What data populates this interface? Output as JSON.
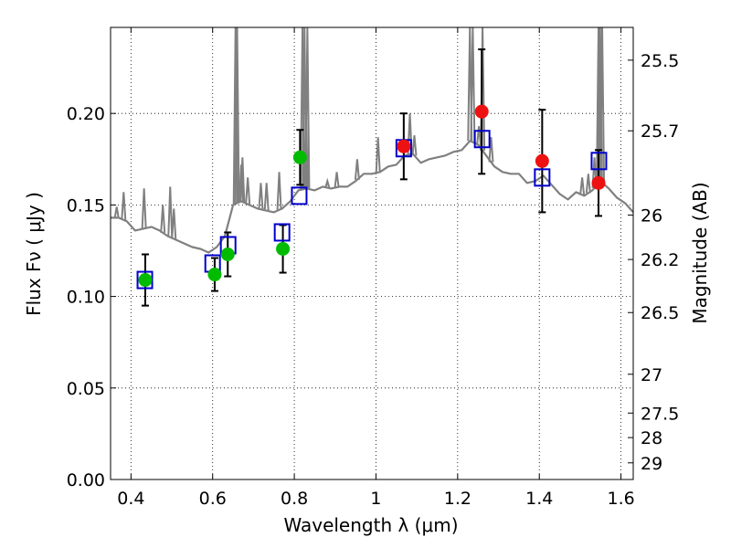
{
  "chart_data": {
    "type": "scatter",
    "xlabel": "Wavelength  λ (μm)",
    "ylabel": "Flux  Fν  ( μJy )",
    "y2label": "Magnitude (AB)",
    "xlim": [
      0.35,
      1.63
    ],
    "ylim": [
      0.0,
      0.247
    ],
    "grid": true,
    "x_ticks": [
      0.4,
      0.6,
      0.8,
      1.0,
      1.2,
      1.4,
      1.6
    ],
    "x_tick_labels": [
      "0.4",
      "0.6",
      "0.8",
      "1",
      "1.2",
      "1.4",
      "1.6"
    ],
    "y_ticks": [
      0.0,
      0.05,
      0.1,
      0.15,
      0.2
    ],
    "y_tick_labels": [
      "0.00",
      "0.05",
      "0.10",
      "0.15",
      "0.20"
    ],
    "y2_ticks": [
      {
        "label": "25.5",
        "flux": 0.2291
      },
      {
        "label": "25.7",
        "flux": 0.1905
      },
      {
        "label": "26",
        "flux": 0.1445
      },
      {
        "label": "26.2",
        "flux": 0.1202
      },
      {
        "label": "26.5",
        "flux": 0.0912
      },
      {
        "label": "27",
        "flux": 0.0575
      },
      {
        "label": "27.5",
        "flux": 0.0363
      },
      {
        "label": "28",
        "flux": 0.0229
      },
      {
        "label": "29",
        "flux": 0.0091
      }
    ],
    "series": [
      {
        "marker": "circle",
        "color": "#00bb00",
        "x": [
          0.435,
          0.605,
          0.637,
          0.772,
          0.814
        ],
        "y": [
          0.109,
          0.112,
          0.123,
          0.126,
          0.176
        ],
        "yerr": [
          0.014,
          0.009,
          0.012,
          0.013,
          0.015
        ]
      },
      {
        "marker": "circle",
        "color": "#ee1111",
        "x": [
          1.068,
          1.259,
          1.407,
          1.545
        ],
        "y": [
          0.182,
          0.201,
          0.174,
          0.162
        ],
        "yerr": [
          0.018,
          0.034,
          0.028,
          0.018
        ]
      },
      {
        "marker": "open-square",
        "color": "#0000cc",
        "x": [
          0.434,
          0.6,
          0.638,
          0.77,
          0.812,
          1.068,
          1.26,
          1.407,
          1.546
        ],
        "y": [
          0.109,
          0.118,
          0.128,
          0.135,
          0.155,
          0.181,
          0.186,
          0.165,
          0.174
        ]
      },
      {
        "marker": "line",
        "color": "#808080",
        "x": [
          0.35,
          0.37,
          0.39,
          0.41,
          0.43,
          0.45,
          0.47,
          0.49,
          0.51,
          0.53,
          0.55,
          0.57,
          0.59,
          0.61,
          0.63,
          0.65,
          0.67,
          0.69,
          0.71,
          0.73,
          0.75,
          0.77,
          0.79,
          0.81,
          0.83,
          0.85,
          0.87,
          0.89,
          0.91,
          0.93,
          0.95,
          0.97,
          0.99,
          1.01,
          1.03,
          1.05,
          1.07,
          1.09,
          1.11,
          1.13,
          1.15,
          1.17,
          1.19,
          1.21,
          1.23,
          1.25,
          1.27,
          1.29,
          1.31,
          1.33,
          1.35,
          1.37,
          1.39,
          1.41,
          1.43,
          1.45,
          1.47,
          1.49,
          1.51,
          1.53,
          1.55,
          1.57,
          1.59,
          1.61,
          1.63
        ],
        "y": [
          0.143,
          0.143,
          0.141,
          0.136,
          0.137,
          0.138,
          0.136,
          0.133,
          0.131,
          0.129,
          0.127,
          0.126,
          0.124,
          0.127,
          0.133,
          0.15,
          0.152,
          0.15,
          0.148,
          0.147,
          0.146,
          0.148,
          0.152,
          0.158,
          0.159,
          0.158,
          0.16,
          0.159,
          0.16,
          0.16,
          0.163,
          0.167,
          0.167,
          0.168,
          0.171,
          0.172,
          0.177,
          0.178,
          0.173,
          0.175,
          0.176,
          0.177,
          0.179,
          0.18,
          0.185,
          0.183,
          0.177,
          0.171,
          0.168,
          0.167,
          0.167,
          0.162,
          0.163,
          0.166,
          0.161,
          0.156,
          0.153,
          0.157,
          0.155,
          0.158,
          0.163,
          0.159,
          0.154,
          0.151,
          0.146
        ]
      },
      {
        "marker": "spike",
        "color": "#808080",
        "x": [
          0.365,
          0.382,
          0.432,
          0.478,
          0.496,
          0.505,
          0.656,
          0.66,
          0.67,
          0.673,
          0.686,
          0.718,
          0.732,
          0.763,
          0.82,
          0.825,
          0.829,
          0.832,
          0.881,
          0.904,
          0.954,
          1.005,
          1.083,
          1.094,
          1.23,
          1.237,
          1.252,
          1.261,
          1.282,
          1.505,
          1.52,
          1.535,
          1.545,
          1.549,
          1.554
        ],
        "y": [
          0.149,
          0.157,
          0.159,
          0.15,
          0.16,
          0.148,
          0.26,
          0.26,
          0.172,
          0.176,
          0.165,
          0.162,
          0.162,
          0.168,
          0.26,
          0.26,
          0.195,
          0.26,
          0.163,
          0.168,
          0.175,
          0.187,
          0.2,
          0.188,
          0.26,
          0.26,
          0.193,
          0.26,
          0.187,
          0.165,
          0.167,
          0.176,
          0.26,
          0.26,
          0.26
        ]
      }
    ]
  }
}
